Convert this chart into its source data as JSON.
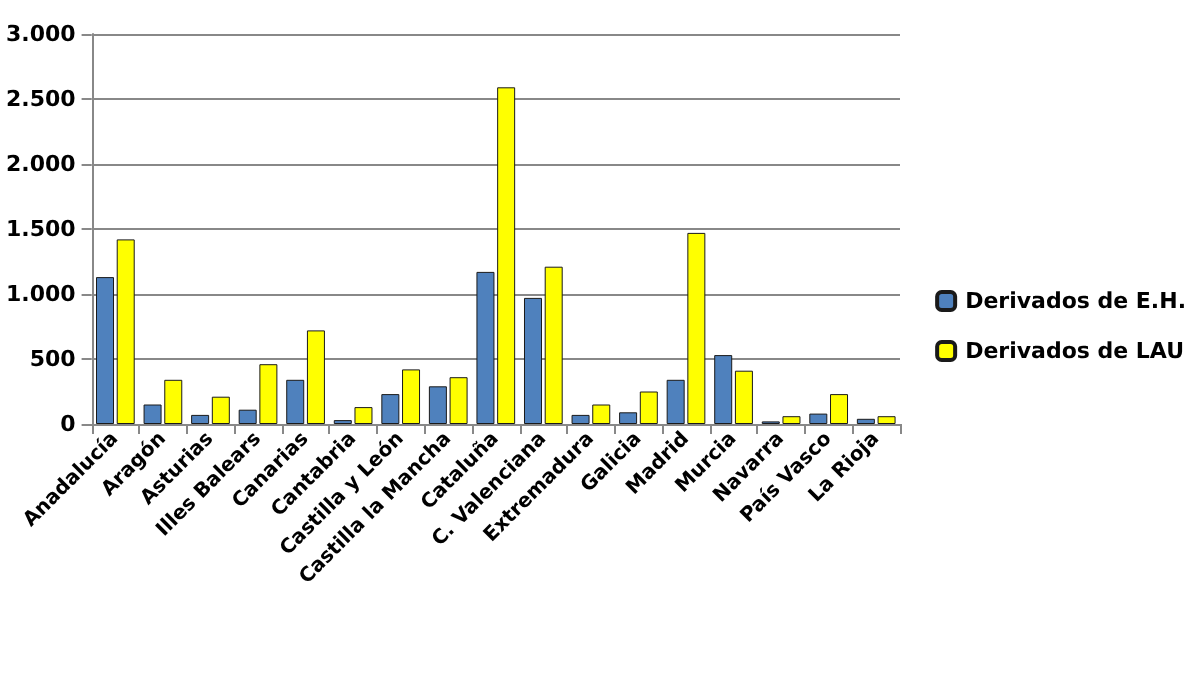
{
  "chart_data": {
    "type": "bar",
    "categories": [
      "Anadalucía",
      "Aragón",
      "Asturias",
      "Illes Balears",
      "Canarias",
      "Cantabria",
      "Castilla y León",
      "Castilla la Mancha",
      "Cataluña",
      "C. Valenciana",
      "Extremadura",
      "Galicia",
      "Madrid",
      "Murcia",
      "Navarra",
      "País Vasco",
      "La Rioja"
    ],
    "series": [
      {
        "name": "Derivados de E.H.",
        "color": "#4f81bd",
        "values": [
          1130,
          150,
          70,
          110,
          340,
          30,
          230,
          290,
          1170,
          970,
          70,
          90,
          340,
          530,
          20,
          80,
          40
        ]
      },
      {
        "name": "Derivados de LAU",
        "color": "#ffff00",
        "values": [
          1420,
          340,
          210,
          460,
          720,
          130,
          420,
          360,
          2590,
          1210,
          150,
          250,
          1470,
          410,
          60,
          230,
          60
        ]
      }
    ],
    "ylim": [
      0,
      3000
    ],
    "yticks": [
      {
        "value": 0,
        "label": "0"
      },
      {
        "value": 500,
        "label": "500"
      },
      {
        "value": 1000,
        "label": "1.000"
      },
      {
        "value": 1500,
        "label": "1.500"
      },
      {
        "value": 2000,
        "label": "2.000"
      },
      {
        "value": 2500,
        "label": "2.500"
      },
      {
        "value": 3000,
        "label": "3.000"
      }
    ],
    "grid": "y",
    "legend": "right"
  }
}
